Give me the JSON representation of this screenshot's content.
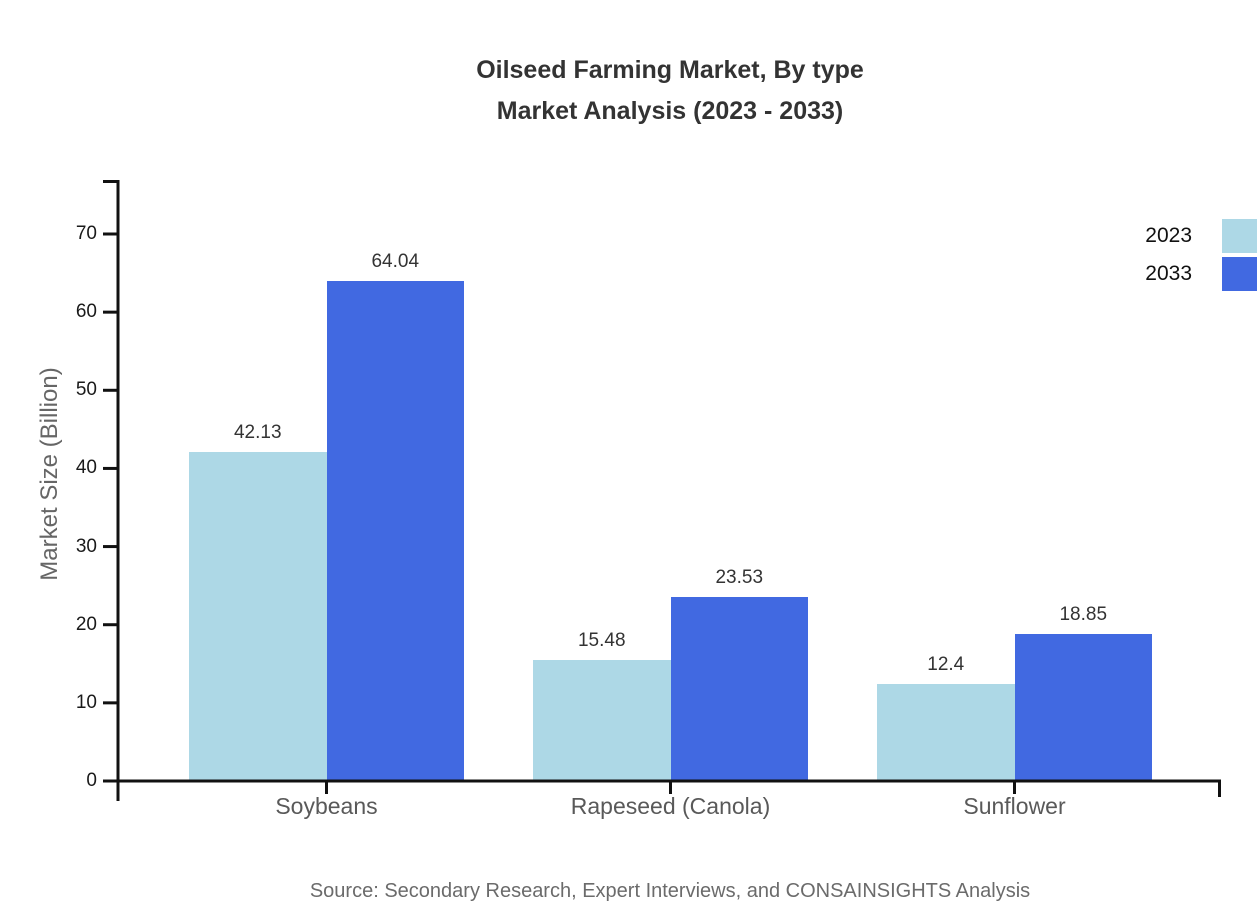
{
  "title": {
    "line1": "Oilseed Farming Market, By type",
    "line2": "Market Analysis (2023 - 2033)"
  },
  "source": "Source: Secondary Research, Expert Interviews, and CONSAINSIGHTS Analysis",
  "legend": [
    {
      "label": "2023",
      "color": "#ADD8E6"
    },
    {
      "label": "2033",
      "color": "#4169E1"
    }
  ],
  "chart_data": {
    "type": "bar",
    "categories": [
      "Soybeans",
      "Rapeseed (Canola)",
      "Sunflower"
    ],
    "series": [
      {
        "name": "2023",
        "color": "#ADD8E6",
        "values": [
          42.13,
          15.48,
          12.4
        ]
      },
      {
        "name": "2033",
        "color": "#4169E1",
        "values": [
          64.04,
          23.53,
          18.85
        ]
      }
    ],
    "value_labels": [
      [
        "42.13",
        "15.48",
        "12.4"
      ],
      [
        "64.04",
        "23.53",
        "18.85"
      ]
    ],
    "title": "Oilseed Farming Market, By type — Market Analysis (2023 - 2033)",
    "xlabel": "",
    "ylabel": "Market Size (Billion)",
    "yticks": [
      0,
      10,
      20,
      30,
      40,
      50,
      60,
      70
    ],
    "ylim": [
      0,
      77
    ],
    "grid": false,
    "legend_position": "upper-right",
    "axis_color": "#111111"
  }
}
